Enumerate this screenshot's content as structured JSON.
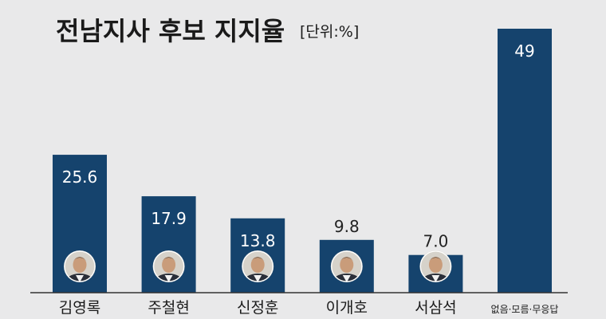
{
  "chart_data": {
    "type": "bar",
    "title": "전남지사 후보 지지율",
    "unit_label": "[단위:%]",
    "categories": [
      "김영록",
      "주철현",
      "신정훈",
      "이개호",
      "서삼석",
      "없음·모름·무응답"
    ],
    "values": [
      25.6,
      17.9,
      13.8,
      9.8,
      7.0,
      49
    ],
    "value_labels": [
      "25.6",
      "17.9",
      "13.8",
      "9.8",
      "7.0",
      "49"
    ],
    "has_candidate_photo": [
      true,
      true,
      true,
      true,
      true,
      false
    ],
    "ylim": [
      0,
      49
    ],
    "grid": false,
    "legend": "none"
  },
  "colors": {
    "background": "#e9e9ea",
    "bar": "#15436d",
    "value_label_inside": "#ffffff",
    "value_label_outside": "#222222",
    "text": "#1a1a1a"
  }
}
